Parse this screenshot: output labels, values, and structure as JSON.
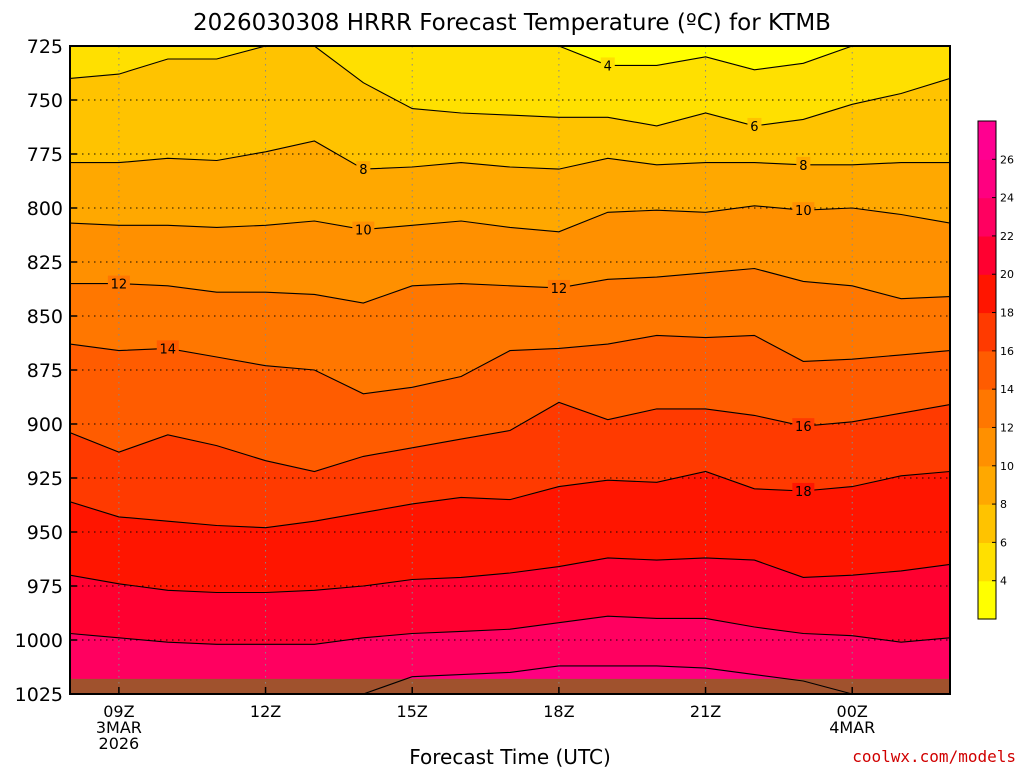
{
  "chart_data": {
    "type": "heatmap",
    "title": "2026030308 HRRR Forecast Temperature (ºC) for KTMB",
    "xlabel": "Forecast Time (UTC)",
    "ylabel": "",
    "credit": "coolwx.com/models",
    "x_range_hours": [
      8,
      26
    ],
    "y_range_hpa": [
      725,
      1025
    ],
    "y_ticks": [
      725,
      750,
      775,
      800,
      825,
      850,
      875,
      900,
      925,
      950,
      975,
      1000,
      1025
    ],
    "x_ticks": [
      {
        "hour": 9,
        "lines": [
          "09Z",
          "3MAR",
          "2026"
        ]
      },
      {
        "hour": 12,
        "lines": [
          "12Z"
        ]
      },
      {
        "hour": 15,
        "lines": [
          "15Z"
        ]
      },
      {
        "hour": 18,
        "lines": [
          "18Z"
        ]
      },
      {
        "hour": 21,
        "lines": [
          "21Z"
        ]
      },
      {
        "hour": 24,
        "lines": [
          "00Z",
          "4MAR"
        ]
      }
    ],
    "grid": true,
    "surface_pressure_hpa": 1018,
    "surface_color": "#a0522d",
    "times_hours": [
      8,
      9,
      10,
      11,
      12,
      13,
      14,
      15,
      16,
      17,
      18,
      19,
      20,
      21,
      22,
      23,
      24,
      25,
      26
    ],
    "contour_interval": 2,
    "isotherms": [
      {
        "value": 4,
        "pressures": [
          722,
          722,
          722,
          722,
          722,
          722,
          722,
          722,
          722,
          722,
          722,
          734,
          734,
          730,
          736,
          733,
          722,
          722,
          722
        ],
        "labels": [
          19
        ]
      },
      {
        "value": 6,
        "pressures": [
          740,
          738,
          731,
          731,
          722,
          722,
          742,
          754,
          756,
          757,
          758,
          758,
          762,
          756,
          762,
          759,
          752,
          747,
          740
        ],
        "labels": [
          22
        ]
      },
      {
        "value": 8,
        "pressures": [
          779,
          779,
          777,
          778,
          774,
          769,
          782,
          781,
          779,
          781,
          782,
          777,
          780,
          779,
          779,
          780,
          780,
          779,
          779
        ],
        "labels": [
          14,
          23
        ]
      },
      {
        "value": 10,
        "pressures": [
          807,
          808,
          808,
          809,
          808,
          806,
          810,
          808,
          806,
          809,
          811,
          802,
          801,
          802,
          799,
          801,
          800,
          803,
          807
        ],
        "labels": [
          14,
          23
        ]
      },
      {
        "value": 12,
        "pressures": [
          835,
          835,
          836,
          839,
          839,
          840,
          844,
          836,
          835,
          836,
          837,
          833,
          832,
          830,
          828,
          834,
          836,
          842,
          841
        ],
        "labels": [
          9,
          18
        ]
      },
      {
        "value": 14,
        "pressures": [
          863,
          866,
          865,
          869,
          873,
          875,
          886,
          883,
          878,
          866,
          865,
          863,
          859,
          860,
          859,
          871,
          870,
          868,
          866
        ],
        "labels": [
          10
        ]
      },
      {
        "value": 16,
        "pressures": [
          904,
          913,
          905,
          910,
          917,
          922,
          915,
          911,
          907,
          903,
          890,
          898,
          893,
          893,
          896,
          901,
          899,
          895,
          891
        ],
        "labels": [
          23
        ]
      },
      {
        "value": 18,
        "pressures": [
          936,
          943,
          945,
          947,
          948,
          945,
          941,
          937,
          934,
          935,
          929,
          926,
          927,
          922,
          930,
          931,
          929,
          924,
          922
        ],
        "labels": [
          23
        ]
      },
      {
        "value": 20,
        "pressures": [
          970,
          974,
          977,
          978,
          978,
          977,
          975,
          972,
          971,
          969,
          966,
          962,
          963,
          962,
          963,
          971,
          970,
          968,
          965
        ],
        "labels": []
      },
      {
        "value": 22,
        "pressures": [
          997,
          999,
          1001,
          1002,
          1002,
          1002,
          999,
          997,
          996,
          995,
          992,
          989,
          990,
          990,
          994,
          997,
          998,
          1001,
          999
        ],
        "labels": []
      },
      {
        "value": 24,
        "pressures": [
          1025,
          1025,
          1025,
          1025,
          1025,
          1025,
          1025,
          1017,
          1016,
          1015,
          1012,
          1012,
          1012,
          1013,
          1016,
          1019,
          1025,
          1025,
          1025
        ],
        "labels": []
      }
    ],
    "colorbar": {
      "labels": [
        4,
        6,
        8,
        10,
        12,
        14,
        16,
        18,
        20,
        22,
        24,
        26
      ],
      "bins": [
        {
          "low": 2,
          "color": "#ffff00"
        },
        {
          "low": 4,
          "color": "#ffe000"
        },
        {
          "low": 6,
          "color": "#ffc300"
        },
        {
          "low": 8,
          "color": "#ffa800"
        },
        {
          "low": 10,
          "color": "#ff9000"
        },
        {
          "low": 12,
          "color": "#ff7700"
        },
        {
          "low": 14,
          "color": "#ff5c00"
        },
        {
          "low": 16,
          "color": "#ff3a00"
        },
        {
          "low": 18,
          "color": "#ff1500"
        },
        {
          "low": 20,
          "color": "#ff0030"
        },
        {
          "low": 22,
          "color": "#ff0060"
        },
        {
          "low": 24,
          "color": "#ff0080"
        },
        {
          "low": 26,
          "color": "#ff0090"
        }
      ]
    }
  }
}
